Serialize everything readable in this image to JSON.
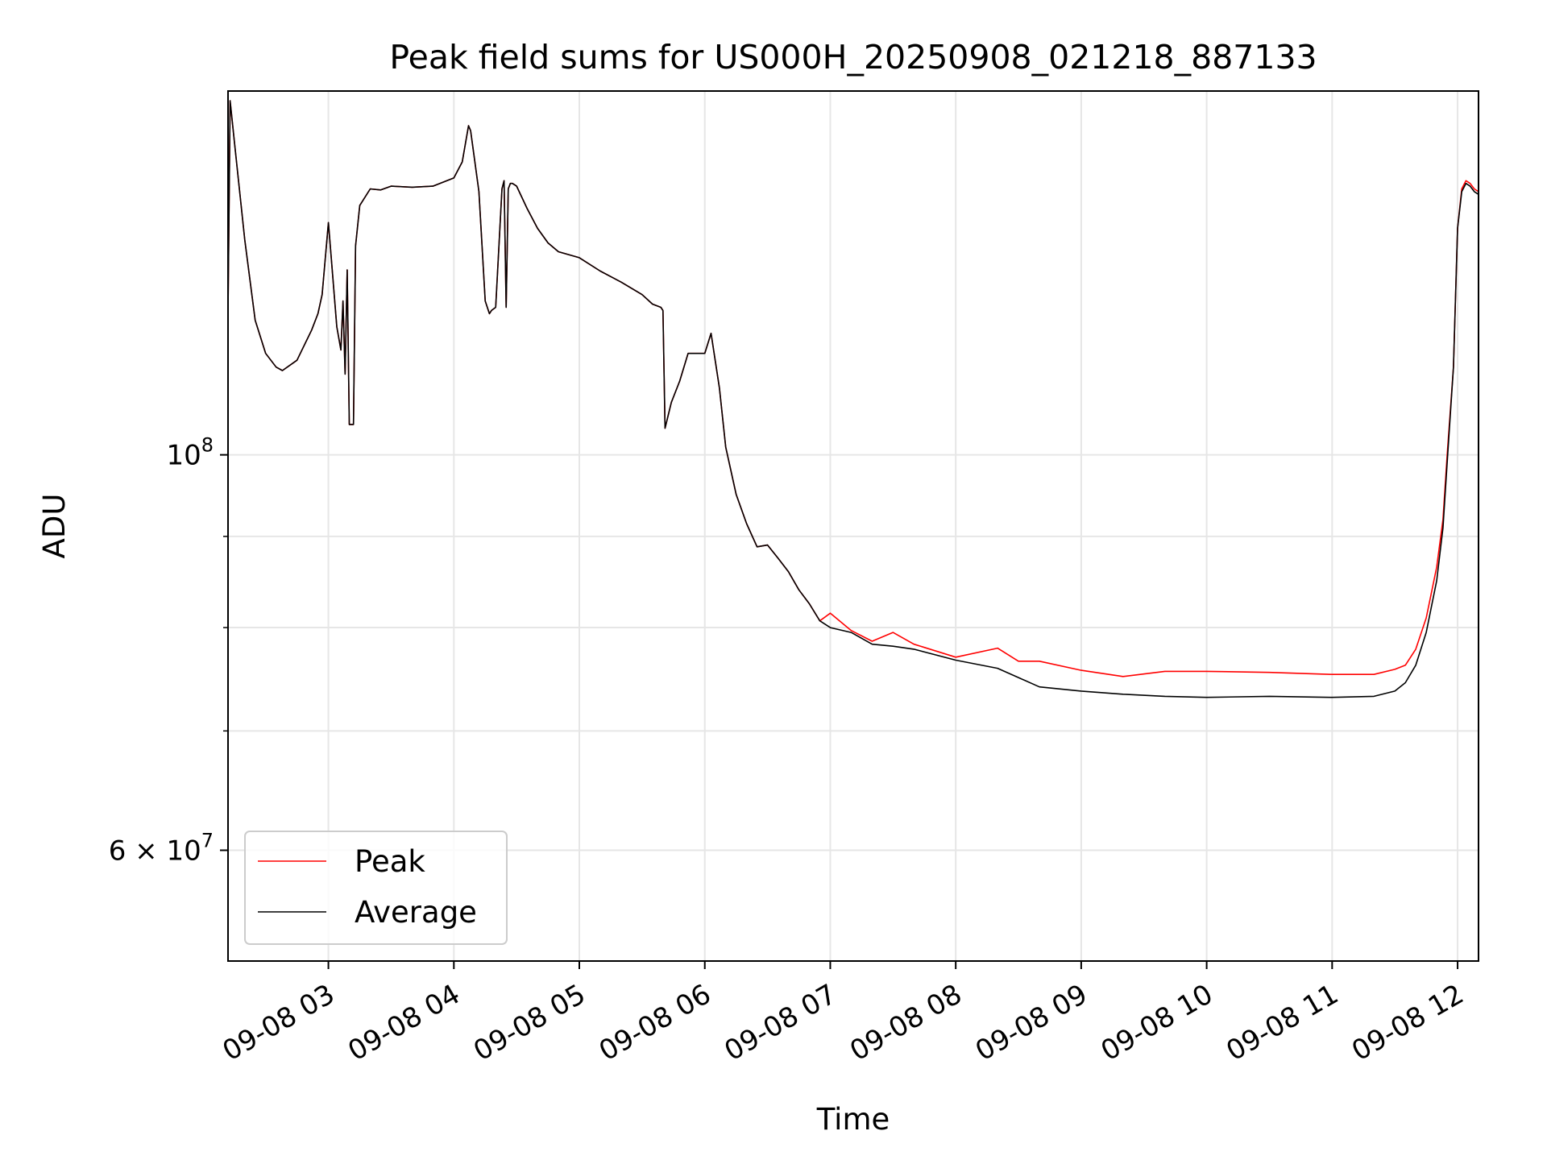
{
  "chart_data": {
    "type": "line",
    "title": "Peak field sums for US000H_20250908_021218_887133",
    "xlabel": "Time",
    "ylabel": "ADU",
    "y_scale": "log",
    "ylim": [
      52000000,
      160000000
    ],
    "xlim": [
      "2025-09-08 02:12",
      "2025-09-08 12:10"
    ],
    "grid": true,
    "legend_position": "lower-left",
    "x_tick_labels": [
      "09-08 03",
      "09-08 04",
      "09-08 05",
      "09-08 06",
      "09-08 07",
      "09-08 08",
      "09-08 09",
      "09-08 10",
      "09-08 11",
      "09-08 12"
    ],
    "y_tick_labels": [
      {
        "value": 100000000,
        "label_base": "10",
        "label_exp": "8"
      },
      {
        "value": 60000000,
        "label_base": "6 × 10",
        "label_exp": "7"
      }
    ],
    "x": [
      "2025-09-08 02:12",
      "2025-09-08 02:13",
      "2025-09-08 02:15",
      "2025-09-08 02:20",
      "2025-09-08 02:25",
      "2025-09-08 02:30",
      "2025-09-08 02:35",
      "2025-09-08 02:38",
      "2025-09-08 02:45",
      "2025-09-08 02:52",
      "2025-09-08 02:55",
      "2025-09-08 02:57",
      "2025-09-08 03:00",
      "2025-09-08 03:04",
      "2025-09-08 03:06",
      "2025-09-08 03:07",
      "2025-09-08 03:08",
      "2025-09-08 03:09",
      "2025-09-08 03:10",
      "2025-09-08 03:12",
      "2025-09-08 03:13",
      "2025-09-08 03:15",
      "2025-09-08 03:20",
      "2025-09-08 03:25",
      "2025-09-08 03:30",
      "2025-09-08 03:40",
      "2025-09-08 03:50",
      "2025-09-08 04:00",
      "2025-09-08 04:04",
      "2025-09-08 04:07",
      "2025-09-08 04:08",
      "2025-09-08 04:09",
      "2025-09-08 04:12",
      "2025-09-08 04:15",
      "2025-09-08 04:17",
      "2025-09-08 04:18",
      "2025-09-08 04:20",
      "2025-09-08 04:23",
      "2025-09-08 04:24",
      "2025-09-08 04:25",
      "2025-09-08 04:26",
      "2025-09-08 04:27",
      "2025-09-08 04:28",
      "2025-09-08 04:30",
      "2025-09-08 04:35",
      "2025-09-08 04:40",
      "2025-09-08 04:45",
      "2025-09-08 04:50",
      "2025-09-08 05:00",
      "2025-09-08 05:10",
      "2025-09-08 05:20",
      "2025-09-08 05:30",
      "2025-09-08 05:35",
      "2025-09-08 05:39",
      "2025-09-08 05:40",
      "2025-09-08 05:41",
      "2025-09-08 05:44",
      "2025-09-08 05:48",
      "2025-09-08 05:52",
      "2025-09-08 05:58",
      "2025-09-08 06:00",
      "2025-09-08 06:03",
      "2025-09-08 06:07",
      "2025-09-08 06:10",
      "2025-09-08 06:15",
      "2025-09-08 06:20",
      "2025-09-08 06:25",
      "2025-09-08 06:30",
      "2025-09-08 06:35",
      "2025-09-08 06:40",
      "2025-09-08 06:45",
      "2025-09-08 06:50",
      "2025-09-08 06:55",
      "2025-09-08 07:00",
      "2025-09-08 07:10",
      "2025-09-08 07:20",
      "2025-09-08 07:30",
      "2025-09-08 07:40",
      "2025-09-08 08:00",
      "2025-09-08 08:20",
      "2025-09-08 08:30",
      "2025-09-08 08:40",
      "2025-09-08 09:00",
      "2025-09-08 09:20",
      "2025-09-08 09:40",
      "2025-09-08 10:00",
      "2025-09-08 10:30",
      "2025-09-08 11:00",
      "2025-09-08 11:20",
      "2025-09-08 11:30",
      "2025-09-08 11:35",
      "2025-09-08 11:40",
      "2025-09-08 11:45",
      "2025-09-08 11:50",
      "2025-09-08 11:53",
      "2025-09-08 11:55",
      "2025-09-08 11:58",
      "2025-09-08 12:00",
      "2025-09-08 12:02",
      "2025-09-08 12:04",
      "2025-09-08 12:06",
      "2025-09-08 12:08",
      "2025-09-08 12:10"
    ],
    "series": [
      {
        "name": "Peak",
        "color": "#ff0000",
        "values": [
          120000000,
          158000000,
          150000000,
          132000000,
          119000000,
          114000000,
          112000000,
          111500000,
          113000000,
          117500000,
          120000000,
          123000000,
          135000000,
          118000000,
          114500000,
          122000000,
          111000000,
          127000000,
          104000000,
          104000000,
          131000000,
          138000000,
          141000000,
          140800000,
          141500000,
          141300000,
          141500000,
          143000000,
          146000000,
          153000000,
          152000000,
          149000000,
          140500000,
          122000000,
          120000000,
          120500000,
          121000000,
          141000000,
          142500000,
          121000000,
          141000000,
          142000000,
          142000000,
          141500000,
          137500000,
          134000000,
          131500000,
          130000000,
          129000000,
          126800000,
          125000000,
          123000000,
          121500000,
          121000000,
          120500000,
          103500000,
          107000000,
          110000000,
          114000000,
          114000000,
          114000000,
          117000000,
          109000000,
          101000000,
          95000000,
          91500000,
          88800000,
          89000000,
          87500000,
          86000000,
          84000000,
          82500000,
          80700000,
          81500000,
          79700000,
          78600000,
          79500000,
          78300000,
          77000000,
          77900000,
          76600000,
          76600000,
          75700000,
          75100000,
          75600000,
          75600000,
          75500000,
          75300000,
          75300000,
          75800000,
          76200000,
          77800000,
          81000000,
          86500000,
          92000000,
          100000000,
          112000000,
          134000000,
          141000000,
          142500000,
          142000000,
          141000000,
          140500000
        ]
      },
      {
        "name": "Average",
        "color": "#000000",
        "values": [
          120000000,
          158000000,
          150000000,
          132000000,
          119000000,
          114000000,
          112000000,
          111500000,
          113000000,
          117500000,
          120000000,
          123000000,
          135000000,
          118000000,
          114500000,
          122000000,
          111000000,
          127000000,
          104000000,
          104000000,
          131000000,
          138000000,
          141000000,
          140800000,
          141500000,
          141300000,
          141500000,
          143000000,
          146000000,
          153000000,
          152000000,
          149000000,
          140500000,
          122000000,
          120000000,
          120500000,
          121000000,
          141000000,
          142500000,
          121000000,
          141000000,
          142000000,
          142000000,
          141500000,
          137500000,
          134000000,
          131500000,
          130000000,
          129000000,
          126800000,
          125000000,
          123000000,
          121500000,
          121000000,
          120500000,
          103500000,
          107000000,
          110000000,
          114000000,
          114000000,
          114000000,
          117000000,
          109000000,
          101000000,
          95000000,
          91500000,
          88800000,
          89000000,
          87500000,
          86000000,
          84000000,
          82500000,
          80700000,
          80000000,
          79500000,
          78300000,
          78100000,
          77800000,
          76700000,
          75900000,
          75000000,
          74100000,
          73700000,
          73400000,
          73200000,
          73100000,
          73200000,
          73100000,
          73200000,
          73700000,
          74500000,
          76200000,
          79500000,
          85000000,
          91000000,
          99000000,
          112000000,
          134000000,
          140500000,
          142000000,
          141500000,
          140500000,
          140000000
        ]
      }
    ]
  }
}
